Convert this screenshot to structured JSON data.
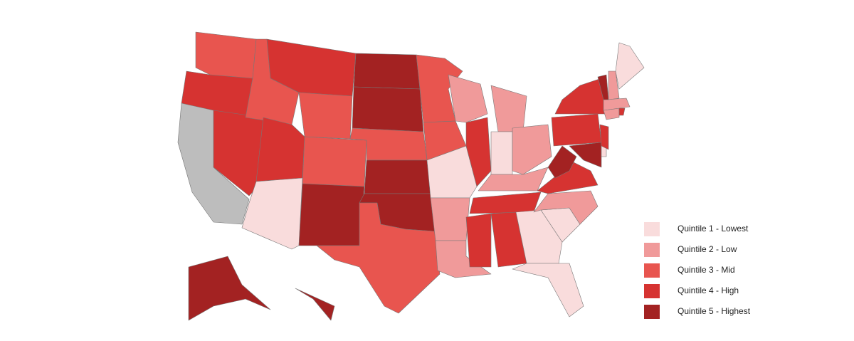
{
  "legend": [
    {
      "label": "Quintile 1 - Lowest",
      "color": "#f9dcdc"
    },
    {
      "label": "Quintile 2 - Low",
      "color": "#f09a9a"
    },
    {
      "label": "Quintile 3 - Mid",
      "color": "#e8554f"
    },
    {
      "label": "Quintile 4 - High",
      "color": "#d63331"
    },
    {
      "label": "Quintile 5 - Highest",
      "color": "#a32222"
    }
  ],
  "no_data_color": "#bdbdbd",
  "regions": [
    3,
    4,
    null,
    4,
    3,
    4,
    3,
    4,
    1,
    3,
    5,
    5,
    5,
    3,
    5,
    5,
    3,
    3,
    3,
    1,
    2,
    2,
    2,
    4,
    2,
    1,
    2,
    2,
    4,
    4,
    4,
    1,
    1,
    1,
    2,
    4,
    5,
    4,
    4,
    5,
    1,
    4,
    2,
    4,
    2,
    5,
    2,
    1,
    5,
    5
  ]
}
